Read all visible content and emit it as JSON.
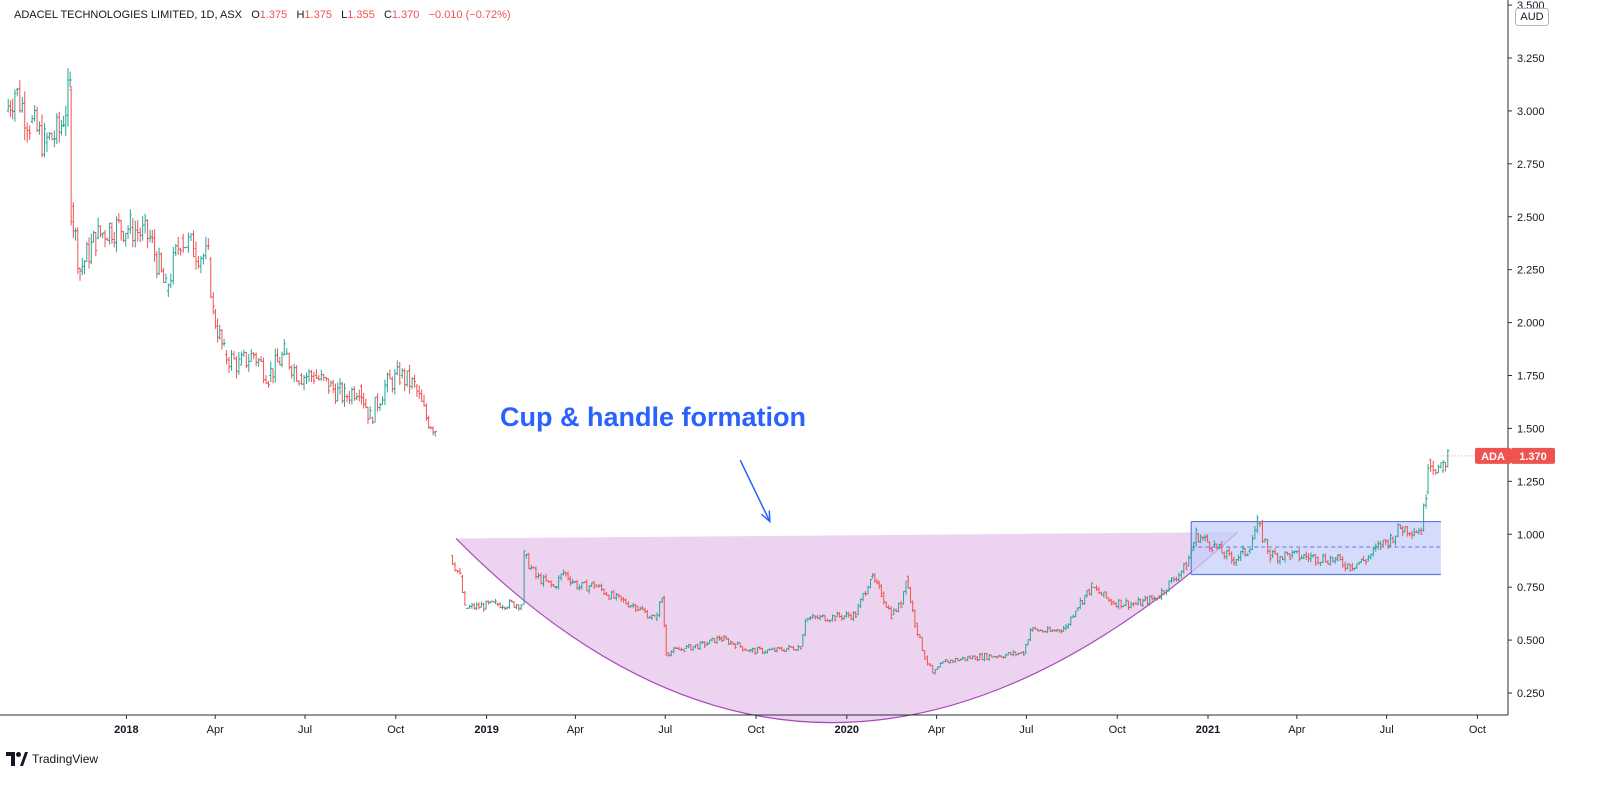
{
  "header": {
    "symbol": "ADACEL TECHNOLOGIES LIMITED, 1D, ASX",
    "o_label": "O",
    "o_value": "1.375",
    "h_label": "H",
    "h_value": "1.375",
    "l_label": "L",
    "l_value": "1.355",
    "c_label": "C",
    "c_value": "1.370",
    "change": "−0.010 (−0.72%)"
  },
  "currency": "AUD",
  "last_price": {
    "ticker": "ADA",
    "value": "1.370",
    "color": "#ef5350"
  },
  "annotation": "Cup & handle formation",
  "footer": {
    "brand": "TradingView"
  },
  "colors": {
    "up": "#26a69a",
    "down": "#ef5350",
    "cup_fill": "#e6c6ec",
    "cup_line": "#ab47bc",
    "box_fill": "#c5cff9",
    "box_line": "#5b7cd9",
    "annotation": "#2962ff"
  },
  "chart_data": {
    "type": "ohlc",
    "ylim": [
      0.1,
      3.5
    ],
    "yticks": [
      "3.500",
      "3.250",
      "3.000",
      "2.750",
      "2.500",
      "2.250",
      "2.000",
      "1.750",
      "1.500",
      "1.250",
      "1.000",
      "0.750",
      "0.500",
      "0.250"
    ],
    "xticks": [
      "2018",
      "Apr",
      "Jul",
      "Oct",
      "2019",
      "Apr",
      "Jul",
      "Oct",
      "2020",
      "Apr",
      "Jul",
      "Oct",
      "2021",
      "Apr",
      "Jul",
      "Oct"
    ],
    "xtick_dates": [
      "2018-01-01",
      "2018-04-01",
      "2018-07-01",
      "2018-10-01",
      "2019-01-01",
      "2019-04-01",
      "2019-07-01",
      "2019-10-01",
      "2020-01-01",
      "2020-04-01",
      "2020-07-01",
      "2020-10-01",
      "2021-01-01",
      "2021-04-01",
      "2021-07-01",
      "2021-10-01"
    ],
    "xrange": [
      "2017-09-01",
      "2021-11-01"
    ],
    "price_path": [
      [
        "2017-09-01",
        3.0
      ],
      [
        "2017-09-10",
        3.1
      ],
      [
        "2017-09-25",
        2.95
      ],
      [
        "2017-10-10",
        2.85
      ],
      [
        "2017-10-25",
        2.9
      ],
      [
        "2017-11-05",
        3.1
      ],
      [
        "2017-11-06",
        2.55
      ],
      [
        "2017-11-15",
        2.25
      ],
      [
        "2017-12-01",
        2.4
      ],
      [
        "2017-12-15",
        2.45
      ],
      [
        "2018-01-05",
        2.45
      ],
      [
        "2018-01-25",
        2.4
      ],
      [
        "2018-02-10",
        2.15
      ],
      [
        "2018-02-25",
        2.4
      ],
      [
        "2018-03-10",
        2.35
      ],
      [
        "2018-03-25",
        2.3
      ],
      [
        "2018-03-30",
        2.05
      ],
      [
        "2018-04-10",
        1.85
      ],
      [
        "2018-04-25",
        1.8
      ],
      [
        "2018-05-10",
        1.85
      ],
      [
        "2018-05-25",
        1.75
      ],
      [
        "2018-06-10",
        1.85
      ],
      [
        "2018-06-25",
        1.75
      ],
      [
        "2018-07-10",
        1.75
      ],
      [
        "2018-07-25",
        1.7
      ],
      [
        "2018-08-10",
        1.65
      ],
      [
        "2018-08-25",
        1.7
      ],
      [
        "2018-09-05",
        1.55
      ],
      [
        "2018-09-20",
        1.7
      ],
      [
        "2018-10-05",
        1.75
      ],
      [
        "2018-10-20",
        1.7
      ],
      [
        "2018-11-01",
        1.55
      ],
      [
        "2018-11-10",
        1.5
      ]
    ],
    "price_path_2": [
      [
        "2018-11-25",
        0.9
      ],
      [
        "2018-12-05",
        0.8
      ],
      [
        "2018-12-10",
        0.65
      ],
      [
        "2019-01-10",
        0.67
      ],
      [
        "2019-02-05",
        0.67
      ],
      [
        "2019-02-08",
        0.9
      ],
      [
        "2019-02-20",
        0.8
      ],
      [
        "2019-03-10",
        0.75
      ],
      [
        "2019-03-20",
        0.82
      ],
      [
        "2019-04-05",
        0.75
      ],
      [
        "2019-04-20",
        0.76
      ],
      [
        "2019-05-10",
        0.7
      ],
      [
        "2019-06-01",
        0.66
      ],
      [
        "2019-06-20",
        0.6
      ],
      [
        "2019-06-28",
        0.7
      ],
      [
        "2019-07-02",
        0.44
      ],
      [
        "2019-07-20",
        0.46
      ],
      [
        "2019-08-10",
        0.48
      ],
      [
        "2019-08-25",
        0.51
      ],
      [
        "2019-09-10",
        0.48
      ],
      [
        "2019-09-25",
        0.45
      ],
      [
        "2019-10-20",
        0.45
      ],
      [
        "2019-11-15",
        0.47
      ],
      [
        "2019-11-20",
        0.6
      ],
      [
        "2019-12-20",
        0.61
      ],
      [
        "2020-01-10",
        0.62
      ],
      [
        "2020-01-25",
        0.8
      ],
      [
        "2020-02-05",
        0.72
      ],
      [
        "2020-02-15",
        0.62
      ],
      [
        "2020-02-25",
        0.67
      ],
      [
        "2020-03-01",
        0.8
      ],
      [
        "2020-03-10",
        0.58
      ],
      [
        "2020-03-20",
        0.42
      ],
      [
        "2020-03-28",
        0.34
      ],
      [
        "2020-04-10",
        0.4
      ],
      [
        "2020-05-10",
        0.42
      ],
      [
        "2020-06-10",
        0.43
      ],
      [
        "2020-06-28",
        0.44
      ],
      [
        "2020-07-05",
        0.55
      ],
      [
        "2020-07-25",
        0.54
      ],
      [
        "2020-08-10",
        0.56
      ],
      [
        "2020-08-20",
        0.65
      ],
      [
        "2020-09-05",
        0.75
      ],
      [
        "2020-09-25",
        0.68
      ],
      [
        "2020-10-20",
        0.67
      ],
      [
        "2020-11-10",
        0.7
      ],
      [
        "2020-11-25",
        0.78
      ],
      [
        "2020-12-10",
        0.85
      ],
      [
        "2020-12-20",
        1.0
      ],
      [
        "2021-01-05",
        0.95
      ],
      [
        "2021-01-25",
        0.88
      ],
      [
        "2021-02-10",
        0.92
      ],
      [
        "2021-02-20",
        1.05
      ],
      [
        "2021-03-05",
        0.9
      ],
      [
        "2021-03-25",
        0.9
      ],
      [
        "2021-04-20",
        0.89
      ],
      [
        "2021-05-10",
        0.88
      ],
      [
        "2021-05-25",
        0.85
      ],
      [
        "2021-06-10",
        0.88
      ],
      [
        "2021-06-25",
        0.95
      ],
      [
        "2021-07-05",
        0.98
      ],
      [
        "2021-07-15",
        1.03
      ],
      [
        "2021-08-05",
        1.02
      ],
      [
        "2021-08-10",
        1.2
      ],
      [
        "2021-08-12",
        1.35
      ],
      [
        "2021-08-25",
        1.3
      ],
      [
        "2021-09-01",
        1.37
      ]
    ],
    "cup": {
      "start": [
        "2018-12-01",
        0.98
      ],
      "end": [
        "2021-01-31",
        1.01
      ],
      "bottom": [
        "2019-12-20",
        0.11
      ]
    },
    "handle_box": {
      "from": "2020-12-15",
      "to": "2021-08-25",
      "top": 1.06,
      "bottom": 0.81,
      "mid": 0.94
    },
    "arrow": {
      "from": [
        "2019-09-15",
        1.35
      ],
      "to": [
        "2019-10-15",
        1.06
      ]
    }
  }
}
